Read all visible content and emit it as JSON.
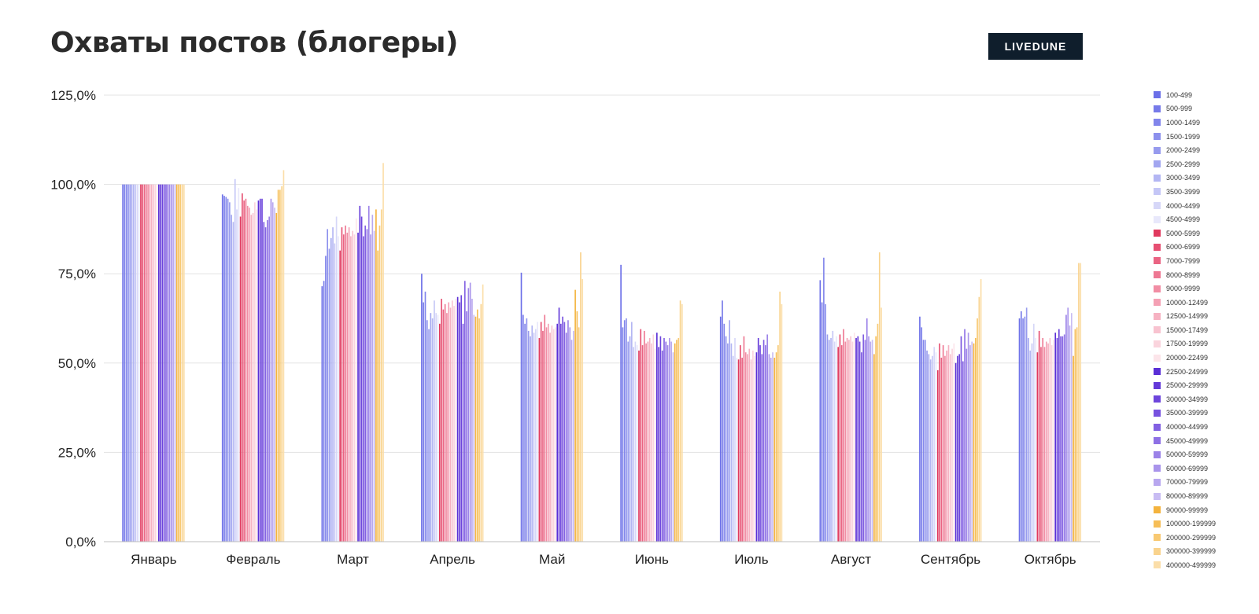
{
  "header": {
    "title": "Охваты постов (блогеры)",
    "logo_text": "LIVEDUNE"
  },
  "chart_data": {
    "type": "bar",
    "title": "Охваты постов (блогеры)",
    "xlabel": "",
    "ylabel": "",
    "ylim": [
      0,
      125
    ],
    "grid": true,
    "legend_position": "right",
    "y_ticks": [
      "0,0%",
      "25,0%",
      "50,0%",
      "75,0%",
      "100,0%",
      "125,0%"
    ],
    "categories": [
      "Январь",
      "Февраль",
      "Март",
      "Апрель",
      "Май",
      "Июнь",
      "Июль",
      "Август",
      "Сентябрь",
      "Октябрь"
    ],
    "series": [
      {
        "name": "100-499",
        "color": "#6b6fe8",
        "values": [
          100,
          97.2,
          71.5,
          75.0,
          75.3,
          77.5,
          63.0,
          73.2,
          63.0,
          62.5
        ]
      },
      {
        "name": "500-999",
        "color": "#767ae9",
        "values": [
          100,
          96.8,
          73.0,
          67.0,
          63.5,
          60.0,
          67.5,
          67.0,
          60.0,
          64.5
        ]
      },
      {
        "name": "1000-1499",
        "color": "#8185eb",
        "values": [
          100,
          96.5,
          80.0,
          70.0,
          61.0,
          62.0,
          61.0,
          79.5,
          56.5,
          62.5
        ]
      },
      {
        "name": "1500-1999",
        "color": "#8c90ed",
        "values": [
          100,
          96.0,
          87.5,
          62.0,
          62.5,
          62.5,
          57.5,
          66.5,
          56.5,
          63.0
        ]
      },
      {
        "name": "2000-2499",
        "color": "#979bee",
        "values": [
          100,
          95.0,
          82.0,
          59.5,
          59.0,
          56.0,
          55.5,
          58.0,
          53.5,
          65.5
        ]
      },
      {
        "name": "2500-2999",
        "color": "#a2a6f0",
        "values": [
          100,
          91.5,
          85.0,
          64.0,
          57.5,
          57.5,
          62.0,
          56.5,
          52.5,
          57.0
        ]
      },
      {
        "name": "3000-3499",
        "color": "#b3b6f3",
        "values": [
          100,
          89.5,
          88.0,
          62.5,
          60.5,
          61.5,
          55.5,
          57.0,
          51.0,
          53.5
        ]
      },
      {
        "name": "3500-3999",
        "color": "#c4c6f6",
        "values": [
          100,
          101.5,
          83.5,
          67.5,
          58.5,
          54.5,
          52.0,
          59.0,
          52.0,
          55.5
        ]
      },
      {
        "name": "4000-4499",
        "color": "#d6d7f8",
        "values": [
          100,
          93.0,
          91.0,
          64.0,
          59.5,
          56.0,
          57.0,
          56.0,
          54.5,
          61.0
        ]
      },
      {
        "name": "4500-4999",
        "color": "#e8e8fb",
        "values": [
          100,
          99.0,
          85.5,
          63.5,
          61.5,
          55.0,
          51.5,
          57.5,
          53.0,
          57.0
        ]
      },
      {
        "name": "5000-5999",
        "color": "#e0395e",
        "values": [
          100,
          91.0,
          81.5,
          61.0,
          57.0,
          53.5,
          51.0,
          54.5,
          48.0,
          53.0
        ]
      },
      {
        "name": "6000-6999",
        "color": "#e64f72",
        "values": [
          100,
          97.5,
          88.0,
          68.0,
          61.5,
          59.5,
          55.0,
          58.0,
          55.5,
          59.0
        ]
      },
      {
        "name": "7000-7999",
        "color": "#ea6483",
        "values": [
          100,
          95.5,
          86.0,
          65.0,
          59.0,
          55.0,
          51.5,
          55.0,
          51.5,
          54.5
        ]
      },
      {
        "name": "8000-8999",
        "color": "#ee7893",
        "values": [
          100,
          96.0,
          88.5,
          66.5,
          63.5,
          59.0,
          57.5,
          59.5,
          55.0,
          57.0
        ]
      },
      {
        "name": "9000-9999",
        "color": "#f18da4",
        "values": [
          100,
          94.0,
          86.5,
          64.0,
          60.0,
          55.5,
          53.0,
          56.0,
          52.0,
          54.5
        ]
      },
      {
        "name": "10000-12499",
        "color": "#f4a0b4",
        "values": [
          100,
          93.5,
          88.0,
          67.0,
          61.0,
          56.0,
          52.5,
          57.0,
          53.5,
          56.0
        ]
      },
      {
        "name": "12500-14999",
        "color": "#f6b2c2",
        "values": [
          100,
          91.5,
          85.5,
          65.5,
          58.5,
          57.0,
          54.0,
          56.5,
          55.0,
          55.5
        ]
      },
      {
        "name": "15000-17499",
        "color": "#f8c3d0",
        "values": [
          100,
          92.0,
          87.0,
          67.5,
          60.5,
          55.5,
          51.0,
          57.5,
          52.5,
          57.0
        ]
      },
      {
        "name": "17500-19999",
        "color": "#fad4dd",
        "values": [
          100,
          95.0,
          86.0,
          66.0,
          59.5,
          58.0,
          53.5,
          56.0,
          54.0,
          55.0
        ]
      },
      {
        "name": "20000-22499",
        "color": "#fce5ea",
        "values": [
          100,
          93.0,
          90.5,
          68.0,
          60.0,
          54.0,
          52.0,
          58.5,
          55.5,
          56.5
        ]
      },
      {
        "name": "22500-24999",
        "color": "#5a2fd6",
        "values": [
          100,
          95.5,
          86.5,
          68.5,
          61.0,
          58.5,
          53.0,
          57.0,
          50.0,
          58.5
        ]
      },
      {
        "name": "25000-29999",
        "color": "#6339d9",
        "values": [
          100,
          96.0,
          94.0,
          67.0,
          65.5,
          54.5,
          57.0,
          57.5,
          52.0,
          57.0
        ]
      },
      {
        "name": "30000-34999",
        "color": "#6d45dc",
        "values": [
          100,
          96.0,
          91.0,
          69.0,
          61.0,
          57.5,
          55.0,
          56.0,
          52.5,
          59.5
        ]
      },
      {
        "name": "35000-39999",
        "color": "#7752df",
        "values": [
          100,
          89.5,
          85.5,
          61.0,
          63.0,
          53.5,
          52.5,
          53.0,
          57.5,
          57.5
        ]
      },
      {
        "name": "40000-44999",
        "color": "#8260e2",
        "values": [
          100,
          88.0,
          88.5,
          73.0,
          61.5,
          57.0,
          56.5,
          58.0,
          50.5,
          57.5
        ]
      },
      {
        "name": "45000-49999",
        "color": "#8e70e5",
        "values": [
          100,
          90.0,
          87.5,
          64.5,
          58.5,
          56.0,
          55.0,
          56.5,
          59.5,
          58.0
        ]
      },
      {
        "name": "50000-59999",
        "color": "#9b82e8",
        "values": [
          100,
          91.0,
          94.0,
          71.0,
          62.0,
          55.0,
          58.0,
          62.5,
          54.0,
          63.5
        ]
      },
      {
        "name": "60000-69999",
        "color": "#a994eb",
        "values": [
          100,
          96.0,
          86.0,
          72.5,
          60.0,
          57.0,
          52.5,
          57.5,
          58.5,
          65.5
        ]
      },
      {
        "name": "70000-79999",
        "color": "#b8a7ef",
        "values": [
          100,
          95.0,
          91.5,
          68.0,
          56.5,
          56.0,
          51.5,
          56.0,
          55.0,
          60.5
        ]
      },
      {
        "name": "80000-89999",
        "color": "#c8bcf3",
        "values": [
          100,
          93.5,
          87.0,
          63.5,
          59.0,
          53.0,
          53.0,
          56.5,
          56.0,
          64.0
        ]
      },
      {
        "name": "90000-99999",
        "color": "#f4b33d",
        "values": [
          100,
          92.0,
          93.0,
          63.0,
          70.5,
          55.5,
          51.5,
          52.5,
          55.5,
          52.0
        ]
      },
      {
        "name": "100000-199999",
        "color": "#f6be57",
        "values": [
          100,
          98.5,
          81.5,
          65.0,
          64.5,
          56.5,
          53.0,
          57.5,
          57.0,
          59.5
        ]
      },
      {
        "name": "200000-299999",
        "color": "#f8c972",
        "values": [
          100,
          98.5,
          88.5,
          62.5,
          60.0,
          57.0,
          55.0,
          61.0,
          62.5,
          60.0
        ]
      },
      {
        "name": "300000-399999",
        "color": "#f9d38d",
        "values": [
          100,
          99.5,
          93.0,
          66.5,
          81.0,
          67.5,
          70.0,
          81.0,
          68.5,
          78.0
        ]
      },
      {
        "name": "400000-499999",
        "color": "#fbdea9",
        "values": [
          100,
          104.0,
          106.0,
          72.0,
          73.5,
          66.5,
          66.5,
          65.5,
          73.5,
          78.0
        ]
      }
    ]
  }
}
